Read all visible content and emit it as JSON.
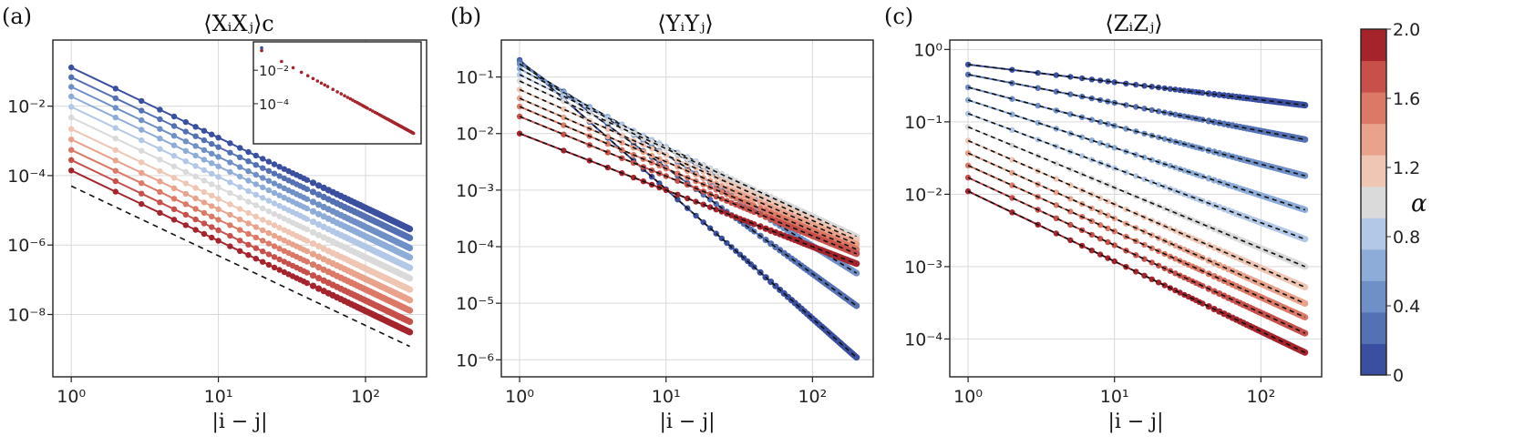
{
  "figure": {
    "colorbar": {
      "label": "α",
      "tick_labels": [
        "0",
        "0.4",
        "0.8",
        "1.2",
        "1.6",
        "2.0"
      ],
      "tick_values": [
        0,
        0.4,
        0.8,
        1.2,
        1.6,
        2.0
      ],
      "range": [
        0,
        2.0
      ],
      "levels": 11,
      "colors": [
        "#3b4fa0",
        "#5471b4",
        "#6f8fc7",
        "#8eacd8",
        "#b3c8e6",
        "#dadada",
        "#efc6b4",
        "#e9a28b",
        "#dc7866",
        "#c8504a",
        "#a5242c"
      ]
    },
    "dash_color": "#111111"
  },
  "chart_data": [
    {
      "type": "line",
      "panel": "(a)",
      "title": "⟨XᵢXⱼ⟩c",
      "xlabel": "|i − j|",
      "ylabel": "",
      "xscale": "log",
      "yscale": "log",
      "xlim": [
        0.75,
        260
      ],
      "ylim": [
        1.6e-10,
        0.8
      ],
      "x_tick_labels": [
        "10⁰",
        "10¹",
        "10²"
      ],
      "x_ticks": [
        1,
        10,
        100
      ],
      "y_tick_labels": [
        "10⁻²",
        "10⁻⁴",
        "10⁻⁶",
        "10⁻⁸"
      ],
      "y_ticks": [
        0.01,
        0.0001,
        1e-06,
        1e-08
      ],
      "grid": true,
      "x_range": [
        1,
        200
      ],
      "series": [
        {
          "alpha": 0.0,
          "values_at_1_and_200": [
            0.13,
            2.9e-06
          ]
        },
        {
          "alpha": 0.2,
          "values_at_1_and_200": [
            0.068,
            1.6e-06
          ]
        },
        {
          "alpha": 0.4,
          "values_at_1_and_200": [
            0.036,
            8.2e-07
          ]
        },
        {
          "alpha": 0.6,
          "values_at_1_and_200": [
            0.019,
            4.4e-07
          ]
        },
        {
          "alpha": 0.8,
          "values_at_1_and_200": [
            0.0095,
            2.2e-07
          ]
        },
        {
          "alpha": 1.0,
          "values_at_1_and_200": [
            0.0047,
            1.1e-07
          ]
        },
        {
          "alpha": 1.2,
          "values_at_1_and_200": [
            0.0022,
            5.2e-08
          ]
        },
        {
          "alpha": 1.4,
          "values_at_1_and_200": [
            0.0011,
            2.6e-08
          ]
        },
        {
          "alpha": 1.6,
          "values_at_1_and_200": [
            0.00055,
            1.3e-08
          ]
        },
        {
          "alpha": 1.8,
          "values_at_1_and_200": [
            0.00028,
            6.2e-09
          ]
        },
        {
          "alpha": 2.0,
          "values_at_1_and_200": [
            0.00014,
            3.1e-09
          ]
        }
      ],
      "reference_line": {
        "style": "dashed",
        "values_at_1_and_200": [
          5e-05,
          1.2e-09
        ]
      },
      "inset": {
        "xlim": [
          0.75,
          260
        ],
        "ylim": [
          4e-07,
          0.5
        ],
        "y_tick_labels": [
          "10⁻²",
          "10⁻⁴"
        ],
        "y_ticks": [
          0.01,
          0.0001
        ],
        "values_at_1_and_200": [
          0.15,
          1.7e-06
        ]
      }
    },
    {
      "type": "line",
      "panel": "(b)",
      "title": "⟨YᵢYⱼ⟩",
      "xlabel": "|i − j|",
      "ylabel": "",
      "xscale": "log",
      "yscale": "log",
      "xlim": [
        0.75,
        260
      ],
      "ylim": [
        5e-07,
        0.45
      ],
      "x_tick_labels": [
        "10⁰",
        "10¹",
        "10²"
      ],
      "x_ticks": [
        1,
        10,
        100
      ],
      "y_tick_labels": [
        "10⁻¹",
        "10⁻²",
        "10⁻³",
        "10⁻⁴",
        "10⁻⁵",
        "10⁻⁶"
      ],
      "y_ticks": [
        0.1,
        0.01,
        0.001,
        0.0001,
        1e-05,
        1e-06
      ],
      "grid": true,
      "x_range": [
        1,
        200
      ],
      "series": [
        {
          "alpha": 0.0,
          "values_at_1_and_200": [
            0.2,
            1.1e-06
          ]
        },
        {
          "alpha": 0.2,
          "values_at_1_and_200": [
            0.19,
            9e-06
          ]
        },
        {
          "alpha": 0.4,
          "values_at_1_and_200": [
            0.17,
            3.4e-05
          ]
        },
        {
          "alpha": 0.6,
          "values_at_1_and_200": [
            0.14,
            8e-05
          ]
        },
        {
          "alpha": 0.8,
          "values_at_1_and_200": [
            0.11,
            0.00013
          ]
        },
        {
          "alpha": 1.0,
          "values_at_1_and_200": [
            0.085,
            0.00015
          ]
        },
        {
          "alpha": 1.2,
          "values_at_1_and_200": [
            0.06,
            0.00013
          ]
        },
        {
          "alpha": 1.4,
          "values_at_1_and_200": [
            0.042,
            0.00011
          ]
        },
        {
          "alpha": 1.6,
          "values_at_1_and_200": [
            0.03,
            9e-05
          ]
        },
        {
          "alpha": 1.8,
          "values_at_1_and_200": [
            0.02,
            7.5e-05
          ]
        },
        {
          "alpha": 2.0,
          "values_at_1_and_200": [
            0.01,
            5e-05
          ]
        }
      ]
    },
    {
      "type": "line",
      "panel": "(c)",
      "title": "⟨ZᵢZⱼ⟩",
      "xlabel": "|i − j|",
      "ylabel": "",
      "xscale": "log",
      "yscale": "log",
      "xlim": [
        0.75,
        260
      ],
      "ylim": [
        3e-05,
        1.35
      ],
      "x_tick_labels": [
        "10⁰",
        "10¹",
        "10²"
      ],
      "x_ticks": [
        1,
        10,
        100
      ],
      "y_tick_labels": [
        "10⁰",
        "10⁻¹",
        "10⁻²",
        "10⁻³",
        "10⁻⁴"
      ],
      "y_ticks": [
        1,
        0.1,
        0.01,
        0.001,
        0.0001
      ],
      "grid": true,
      "x_range": [
        1,
        200
      ],
      "series": [
        {
          "alpha": 0.0,
          "values_at_1_and_200": [
            0.62,
            0.17
          ]
        },
        {
          "alpha": 0.2,
          "values_at_1_and_200": [
            0.45,
            0.057
          ]
        },
        {
          "alpha": 0.4,
          "values_at_1_and_200": [
            0.3,
            0.018
          ]
        },
        {
          "alpha": 0.6,
          "values_at_1_and_200": [
            0.2,
            0.0061
          ]
        },
        {
          "alpha": 0.8,
          "values_at_1_and_200": [
            0.13,
            0.0024
          ]
        },
        {
          "alpha": 1.0,
          "values_at_1_and_200": [
            0.085,
            0.001
          ]
        },
        {
          "alpha": 1.2,
          "values_at_1_and_200": [
            0.055,
            0.00052
          ]
        },
        {
          "alpha": 1.4,
          "values_at_1_and_200": [
            0.037,
            0.00031
          ]
        },
        {
          "alpha": 1.6,
          "values_at_1_and_200": [
            0.025,
            0.0002
          ]
        },
        {
          "alpha": 1.8,
          "values_at_1_and_200": [
            0.017,
            0.00012
          ]
        },
        {
          "alpha": 2.0,
          "values_at_1_and_200": [
            0.011,
            6.5e-05
          ]
        }
      ]
    }
  ]
}
